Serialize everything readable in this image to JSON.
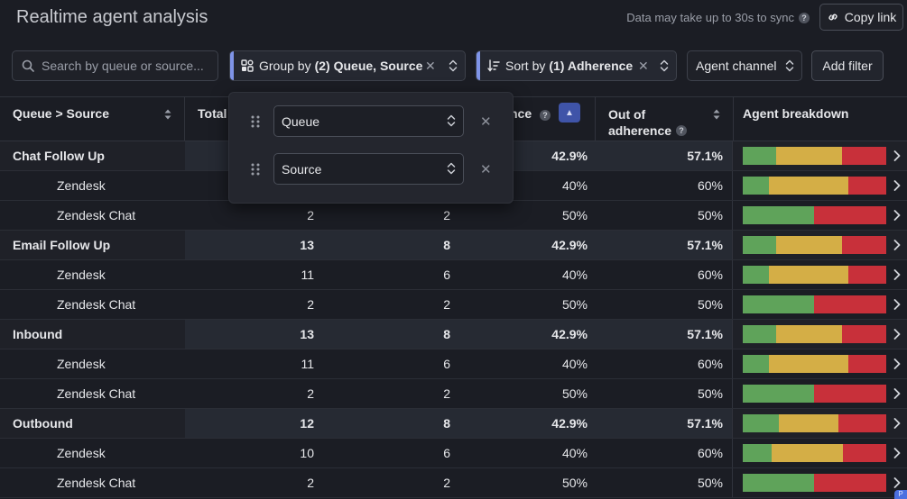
{
  "header": {
    "title": "Realtime agent analysis",
    "sync_note": "Data may take up to 30s to sync",
    "copy_link_label": "Copy link"
  },
  "toolbar": {
    "search_placeholder": "Search by queue or source...",
    "group_by_prefix": "Group by",
    "group_by_value": "(2) Queue, Source",
    "sort_by_prefix": "Sort by",
    "sort_by_value": "(1) Adherence",
    "agent_channel_label": "Agent channel",
    "add_filter_label": "Add filter"
  },
  "group_popover": {
    "options": [
      "Queue",
      "Source"
    ]
  },
  "table": {
    "headers": {
      "queue_source": "Queue > Source",
      "total": "Total a",
      "in_adherence": "nce",
      "out_adherence_line1": "Out of",
      "out_adherence_line2": "adherence",
      "breakdown": "Agent breakdown"
    },
    "rows": [
      {
        "kind": "group",
        "name": "Chat Follow Up",
        "total": "",
        "in": "",
        "pct": "42.9%",
        "out": "57.1%",
        "bar": [
          0.233,
          0.459,
          0.308
        ]
      },
      {
        "kind": "sub",
        "name": "Zendesk",
        "total": "",
        "in": "",
        "pct": "40%",
        "out": "60%",
        "bar": [
          0.182,
          0.553,
          0.265
        ]
      },
      {
        "kind": "sub",
        "name": "Zendesk Chat",
        "total": "2",
        "in": "2",
        "pct": "50%",
        "out": "50%",
        "bar": [
          0.497,
          0,
          0.503
        ]
      },
      {
        "kind": "group",
        "name": "Email Follow Up",
        "total": "13",
        "in": "8",
        "pct": "42.9%",
        "out": "57.1%",
        "bar": [
          0.233,
          0.459,
          0.308
        ]
      },
      {
        "kind": "sub",
        "name": "Zendesk",
        "total": "11",
        "in": "6",
        "pct": "40%",
        "out": "60%",
        "bar": [
          0.182,
          0.553,
          0.265
        ]
      },
      {
        "kind": "sub",
        "name": "Zendesk Chat",
        "total": "2",
        "in": "2",
        "pct": "50%",
        "out": "50%",
        "bar": [
          0.497,
          0,
          0.503
        ]
      },
      {
        "kind": "group",
        "name": "Inbound",
        "total": "13",
        "in": "8",
        "pct": "42.9%",
        "out": "57.1%",
        "bar": [
          0.233,
          0.459,
          0.308
        ]
      },
      {
        "kind": "sub",
        "name": "Zendesk",
        "total": "11",
        "in": "6",
        "pct": "40%",
        "out": "60%",
        "bar": [
          0.182,
          0.553,
          0.265
        ]
      },
      {
        "kind": "sub",
        "name": "Zendesk Chat",
        "total": "2",
        "in": "2",
        "pct": "50%",
        "out": "50%",
        "bar": [
          0.497,
          0,
          0.503
        ]
      },
      {
        "kind": "group",
        "name": "Outbound",
        "total": "12",
        "in": "8",
        "pct": "42.9%",
        "out": "57.1%",
        "bar": [
          0.252,
          0.415,
          0.333
        ]
      },
      {
        "kind": "sub",
        "name": "Zendesk",
        "total": "10",
        "in": "6",
        "pct": "40%",
        "out": "60%",
        "bar": [
          0.201,
          0.497,
          0.302
        ]
      },
      {
        "kind": "sub",
        "name": "Zendesk Chat",
        "total": "2",
        "in": "2",
        "pct": "50%",
        "out": "50%",
        "bar": [
          0.497,
          0,
          0.503
        ]
      }
    ]
  },
  "corner_tag": "P",
  "colors": {
    "in_adherence": "#5fa35a",
    "warning": "#d4ae46",
    "out_of_adherence": "#c8303a",
    "accent": "#7f94e8"
  }
}
